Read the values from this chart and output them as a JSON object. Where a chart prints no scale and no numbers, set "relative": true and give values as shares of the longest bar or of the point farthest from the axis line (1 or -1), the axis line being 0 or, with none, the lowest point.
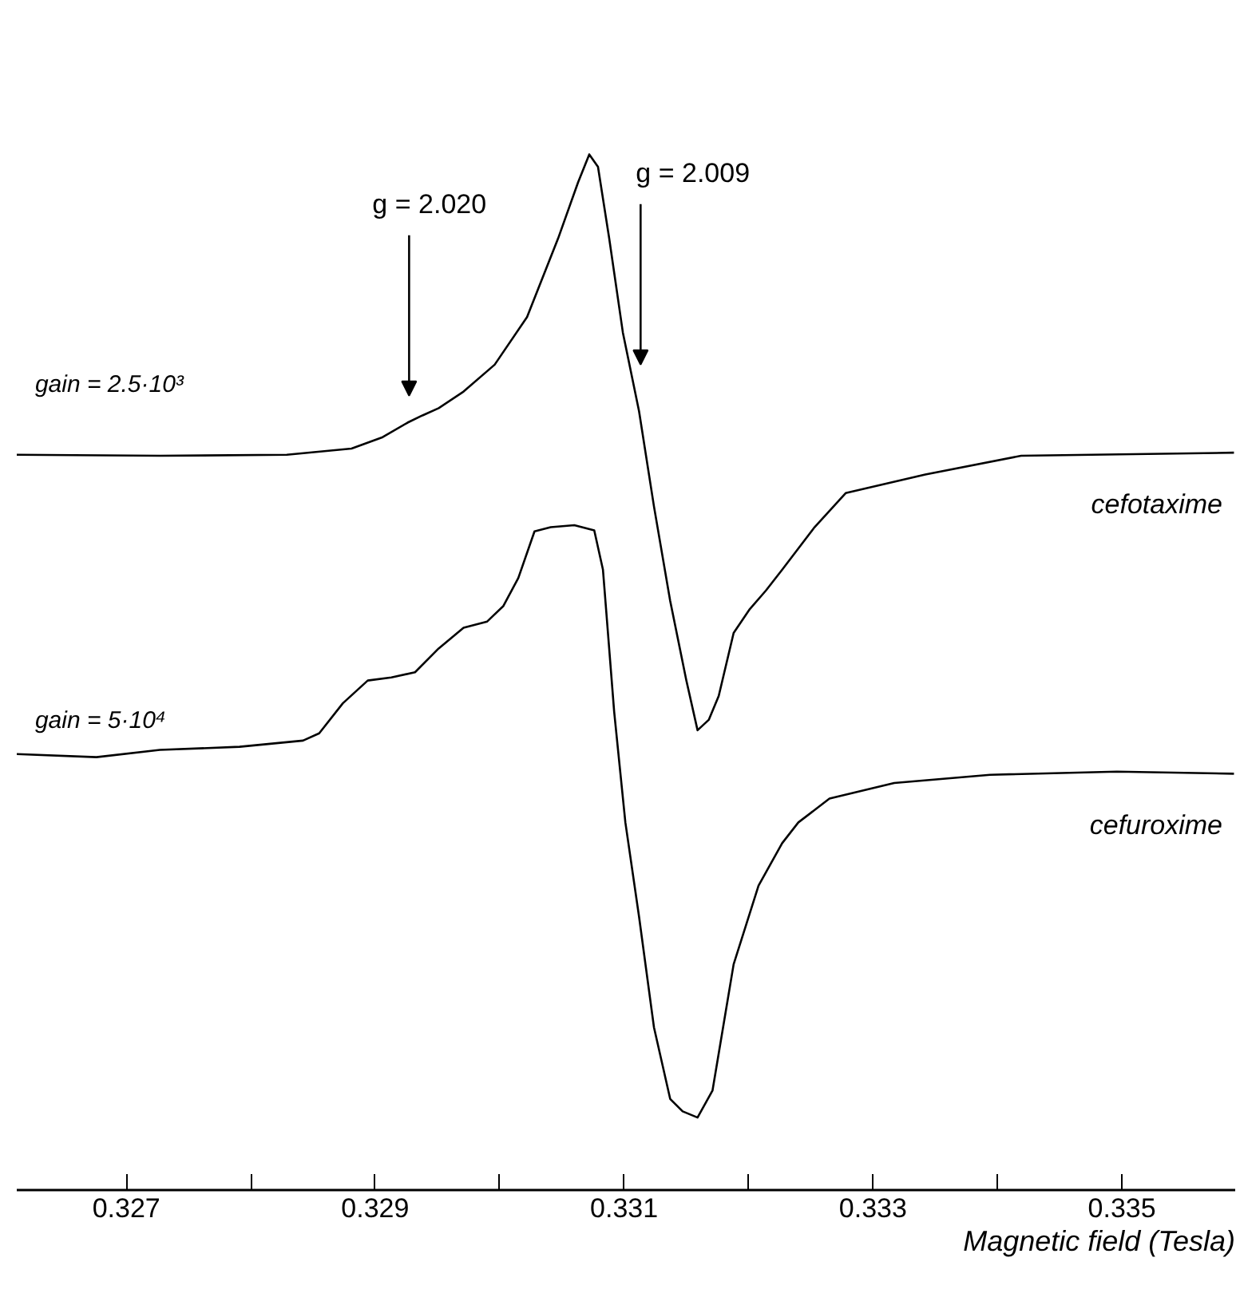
{
  "chart_data": {
    "type": "line",
    "relative": true,
    "xlabel": "Magnetic field (Tesla)",
    "xlim": [
      0.32612,
      0.33591
    ],
    "xticks": [
      0.327,
      {
        "value": 0.328,
        "label": null
      },
      0.329,
      {
        "value": 0.33,
        "label": null
      },
      0.331,
      {
        "value": 0.332,
        "label": null
      },
      0.333,
      {
        "value": 0.334,
        "label": null
      },
      0.335
    ],
    "grid": false,
    "legend": false,
    "marker": "none",
    "line_style": "solid",
    "series": [
      {
        "name": "cefotaxime",
        "color": "#000000",
        "x": [
          0.32612,
          0.32727,
          0.32829,
          0.32881,
          0.32906,
          0.32926,
          0.32938,
          0.32951,
          0.32971,
          0.32996,
          0.33022,
          0.33047,
          0.33063,
          0.33072,
          0.33079,
          0.33088,
          0.33099,
          0.33112,
          0.33124,
          0.33137,
          0.3315,
          0.33159,
          0.33168,
          0.33176,
          0.33188,
          0.33201,
          0.33214,
          0.33227,
          0.33253,
          0.33278,
          0.33342,
          0.33419,
          0.3359
        ],
        "values": [
          0.71,
          0.709,
          0.71,
          0.716,
          0.727,
          0.741,
          0.748,
          0.755,
          0.771,
          0.797,
          0.843,
          0.919,
          0.973,
          1,
          0.988,
          0.919,
          0.828,
          0.752,
          0.66,
          0.569,
          0.492,
          0.444,
          0.454,
          0.477,
          0.538,
          0.561,
          0.579,
          0.599,
          0.64,
          0.673,
          0.691,
          0.709,
          0.712
        ]
      },
      {
        "name": "cefuroxime",
        "color": "#000000",
        "x": [
          0.32612,
          0.32676,
          0.32727,
          0.32791,
          0.32842,
          0.32855,
          0.32874,
          0.32894,
          0.32913,
          0.32932,
          0.32951,
          0.32971,
          0.3299,
          0.33003,
          0.33015,
          0.33028,
          0.33041,
          0.3306,
          0.33076,
          0.33083,
          0.33092,
          0.33101,
          0.33112,
          0.33124,
          0.33137,
          0.33147,
          0.33159,
          0.33171,
          0.33188,
          0.33208,
          0.33227,
          0.3324,
          0.33265,
          0.33317,
          0.33394,
          0.33496,
          0.3359
        ],
        "values": [
          0.421,
          0.418,
          0.425,
          0.428,
          0.434,
          0.441,
          0.47,
          0.492,
          0.495,
          0.5,
          0.523,
          0.543,
          0.549,
          0.564,
          0.591,
          0.636,
          0.64,
          0.642,
          0.637,
          0.599,
          0.462,
          0.355,
          0.264,
          0.157,
          0.088,
          0.076,
          0.07,
          0.096,
          0.218,
          0.294,
          0.335,
          0.355,
          0.378,
          0.393,
          0.401,
          0.404,
          0.402
        ]
      }
    ],
    "annotations": [
      "g = 2.020",
      "g = 2.009",
      "gain = 2.5·10³",
      "gain = 5·10⁴"
    ]
  }
}
